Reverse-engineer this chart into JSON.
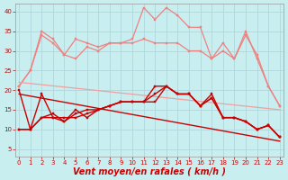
{
  "background_color": "#c8eef0",
  "grid_color": "#b0d8dc",
  "xlabel": "Vent moyen/en rafales ( km/h )",
  "xlabel_color": "#cc0000",
  "xlabel_fontsize": 7,
  "yticks": [
    5,
    10,
    15,
    20,
    25,
    30,
    35,
    40
  ],
  "ylim": [
    3,
    42
  ],
  "xlim": [
    -0.3,
    23.3
  ],
  "xticks": [
    0,
    1,
    2,
    3,
    4,
    5,
    6,
    7,
    8,
    9,
    10,
    11,
    12,
    13,
    14,
    15,
    16,
    17,
    18,
    19,
    20,
    21,
    22,
    23
  ],
  "tick_fontsize": 5,
  "series": [
    {
      "label": "pink_high_peak",
      "x": [
        0,
        1,
        2,
        3,
        4,
        5,
        6,
        7,
        8,
        9,
        10,
        11,
        12,
        13,
        14,
        15,
        16,
        17,
        18,
        19,
        20,
        21,
        22,
        23
      ],
      "y": [
        21,
        25,
        35,
        33,
        29,
        28,
        31,
        30,
        32,
        32,
        33,
        41,
        38,
        41,
        39,
        36,
        36,
        28,
        32,
        28,
        34,
        29,
        21,
        16
      ],
      "color": "#f08080",
      "lw": 0.9,
      "marker": "s",
      "markersize": 1.8
    },
    {
      "label": "pink_flat",
      "x": [
        0,
        1,
        2,
        3,
        4,
        5,
        6,
        7,
        8,
        9,
        10,
        11,
        12,
        13,
        14,
        15,
        16,
        17,
        18,
        19,
        20,
        21,
        22,
        23
      ],
      "y": [
        21,
        25,
        34,
        32,
        29,
        33,
        32,
        31,
        32,
        32,
        32,
        33,
        32,
        32,
        32,
        30,
        30,
        28,
        30,
        28,
        35,
        28,
        21,
        16
      ],
      "color": "#f08080",
      "lw": 0.9,
      "marker": "s",
      "markersize": 1.8
    },
    {
      "label": "pink_diagonal_trend",
      "x": [
        0,
        23
      ],
      "y": [
        22,
        15
      ],
      "color": "#f0a0a0",
      "lw": 0.9,
      "marker": null,
      "markersize": 0
    },
    {
      "label": "red_mid_with_peak",
      "x": [
        0,
        1,
        2,
        3,
        4,
        5,
        6,
        7,
        8,
        9,
        10,
        11,
        12,
        13,
        14,
        15,
        16,
        17,
        18,
        19,
        20,
        21,
        22,
        23
      ],
      "y": [
        10,
        10,
        13,
        13,
        13,
        13,
        14,
        15,
        16,
        17,
        17,
        17,
        21,
        21,
        19,
        19,
        16,
        18,
        13,
        13,
        12,
        10,
        11,
        8
      ],
      "color": "#cc0000",
      "lw": 1.0,
      "marker": "s",
      "markersize": 1.8
    },
    {
      "label": "red_mid2",
      "x": [
        0,
        1,
        2,
        3,
        4,
        5,
        6,
        7,
        8,
        9,
        10,
        11,
        12,
        13,
        14,
        15,
        16,
        17,
        18,
        19,
        20,
        21,
        22,
        23
      ],
      "y": [
        10,
        10,
        13,
        14,
        12,
        15,
        13,
        15,
        16,
        17,
        17,
        17,
        19,
        21,
        19,
        19,
        16,
        18,
        13,
        13,
        12,
        10,
        11,
        8
      ],
      "color": "#cc0000",
      "lw": 1.0,
      "marker": "s",
      "markersize": 1.8
    },
    {
      "label": "red_upper",
      "x": [
        0,
        1,
        2,
        3,
        4,
        5,
        6,
        7,
        8,
        9,
        10,
        11,
        12,
        13,
        14,
        15,
        16,
        17,
        18,
        19,
        20,
        21,
        22,
        23
      ],
      "y": [
        20,
        10,
        19,
        13,
        12,
        14,
        15,
        15,
        16,
        17,
        17,
        17,
        17,
        21,
        19,
        19,
        16,
        19,
        13,
        13,
        12,
        10,
        11,
        8
      ],
      "color": "#cc0000",
      "lw": 1.0,
      "marker": "s",
      "markersize": 1.8
    },
    {
      "label": "red_diagonal_trend",
      "x": [
        0,
        23
      ],
      "y": [
        19,
        7
      ],
      "color": "#cc0000",
      "lw": 1.0,
      "marker": null,
      "markersize": 0
    }
  ]
}
